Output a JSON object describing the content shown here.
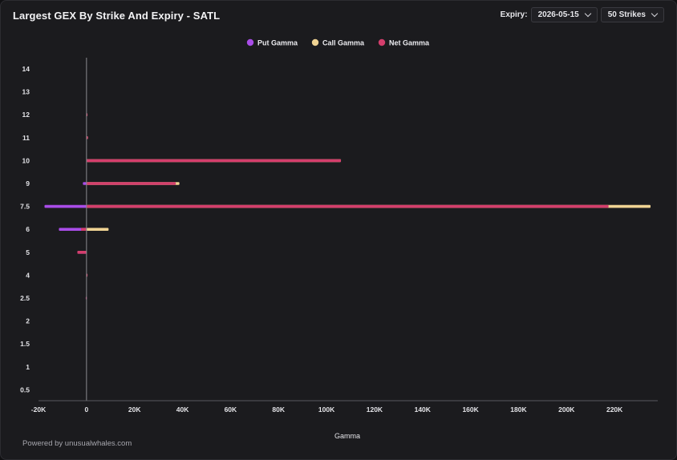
{
  "header": {
    "title": "Largest GEX By Strike And Expiry - SATL",
    "expiry_label": "Expiry:",
    "expiry_value": "2026-05-15",
    "strikes_value": "50 Strikes"
  },
  "footer": {
    "powered_by": "Powered by unusualwhales.com"
  },
  "colors": {
    "put": "#a94de8",
    "call": "#f0d393",
    "net": "#d43e6c",
    "axis": "#8a8a90"
  },
  "chart_data": {
    "type": "bar",
    "orientation": "horizontal",
    "title": "Largest GEX By Strike And Expiry - SATL",
    "xlabel": "Gamma",
    "ylabel": "",
    "xlim": [
      -20000,
      238000
    ],
    "x_ticks": [
      -20000,
      0,
      20000,
      40000,
      60000,
      80000,
      100000,
      120000,
      140000,
      160000,
      180000,
      200000,
      220000
    ],
    "x_tick_labels": [
      "-20K",
      "0",
      "20K",
      "40K",
      "60K",
      "80K",
      "100K",
      "120K",
      "140K",
      "160K",
      "180K",
      "200K",
      "220K"
    ],
    "categories": [
      "14",
      "13",
      "12",
      "11",
      "10",
      "9",
      "7.5",
      "6",
      "5",
      "4",
      "2.5",
      "2",
      "1.5",
      "1",
      "0.5"
    ],
    "legend_position": "top-center",
    "series": [
      {
        "name": "Put Gamma",
        "values": [
          0,
          0,
          0,
          0,
          0,
          -1500,
          -17500,
          -11500,
          -3800,
          0,
          -300,
          0,
          0,
          0,
          0
        ]
      },
      {
        "name": "Call Gamma",
        "values": [
          0,
          0,
          400,
          600,
          106000,
          38700,
          235000,
          9200,
          0,
          200,
          0,
          0,
          0,
          0,
          0
        ]
      },
      {
        "name": "Net Gamma",
        "values": [
          0,
          0,
          400,
          600,
          106000,
          37200,
          217500,
          -2300,
          -3800,
          200,
          -300,
          0,
          0,
          0,
          0
        ]
      }
    ]
  }
}
